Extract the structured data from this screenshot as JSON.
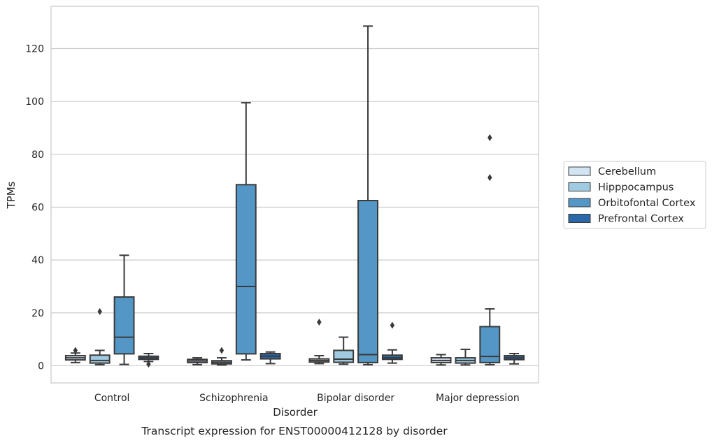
{
  "chart_data": {
    "type": "box",
    "caption": "Transcript expression for ENST00000412128 by disorder",
    "xlabel": "Disorder",
    "ylabel": "TPMs",
    "ylim": [
      -6.5,
      136
    ],
    "yticks": [
      0,
      20,
      40,
      60,
      80,
      100,
      120
    ],
    "grid": "horizontal",
    "legend_placement": "right",
    "categories": [
      "Control",
      "Schizophrenia",
      "Bipolar disorder",
      "Major depression"
    ],
    "series": [
      {
        "name": "Cerebellum",
        "color": "#d3e4f3",
        "boxes": [
          {
            "whislo": 1.2,
            "q1": 2.2,
            "median": 3.0,
            "q3": 3.8,
            "whishi": 4.8,
            "fliers": [
              5.8
            ]
          },
          {
            "whislo": 0.4,
            "q1": 1.2,
            "median": 1.8,
            "q3": 2.4,
            "whishi": 3.0,
            "fliers": []
          },
          {
            "whislo": 0.8,
            "q1": 1.4,
            "median": 2.0,
            "q3": 2.6,
            "whishi": 3.8,
            "fliers": [
              16.5
            ]
          },
          {
            "whislo": 0.3,
            "q1": 1.2,
            "median": 2.0,
            "q3": 3.0,
            "whishi": 4.2,
            "fliers": []
          }
        ]
      },
      {
        "name": "Hipppocampus",
        "color": "#a0cae1",
        "boxes": [
          {
            "whislo": 0.4,
            "q1": 1.0,
            "median": 2.0,
            "q3": 4.0,
            "whishi": 5.8,
            "fliers": [
              20.5
            ]
          },
          {
            "whislo": 0.3,
            "q1": 0.7,
            "median": 1.3,
            "q3": 1.9,
            "whishi": 3.0,
            "fliers": [
              5.8
            ]
          },
          {
            "whislo": 0.6,
            "q1": 1.3,
            "median": 2.5,
            "q3": 5.8,
            "whishi": 10.8,
            "fliers": []
          },
          {
            "whislo": 0.3,
            "q1": 1.0,
            "median": 2.0,
            "q3": 3.0,
            "whishi": 6.2,
            "fliers": []
          }
        ]
      },
      {
        "name": "Orbitofontal Cortex",
        "color": "#5497c6",
        "boxes": [
          {
            "whislo": 0.5,
            "q1": 4.5,
            "median": 10.8,
            "q3": 26.0,
            "whishi": 41.8,
            "fliers": []
          },
          {
            "whislo": 2.2,
            "q1": 4.5,
            "median": 30.0,
            "q3": 68.5,
            "whishi": 99.5,
            "fliers": []
          },
          {
            "whislo": 0.4,
            "q1": 1.2,
            "median": 4.2,
            "q3": 62.5,
            "whishi": 128.5,
            "fliers": []
          },
          {
            "whislo": 0.4,
            "q1": 1.2,
            "median": 3.5,
            "q3": 14.8,
            "whishi": 21.5,
            "fliers": [
              71.2,
              86.3
            ]
          }
        ]
      },
      {
        "name": "Prefrontal Cortex",
        "color": "#2a68a8",
        "boxes": [
          {
            "whislo": 1.6,
            "q1": 2.4,
            "median": 3.0,
            "q3": 3.6,
            "whishi": 4.6,
            "fliers": [
              0.6
            ]
          },
          {
            "whislo": 0.8,
            "q1": 2.6,
            "median": 3.6,
            "q3": 4.6,
            "whishi": 5.2,
            "fliers": []
          },
          {
            "whislo": 1.0,
            "q1": 2.4,
            "median": 3.0,
            "q3": 4.0,
            "whishi": 6.0,
            "fliers": [
              15.3
            ]
          },
          {
            "whislo": 0.7,
            "q1": 2.3,
            "median": 3.0,
            "q3": 3.8,
            "whishi": 4.6,
            "fliers": []
          }
        ]
      }
    ]
  }
}
